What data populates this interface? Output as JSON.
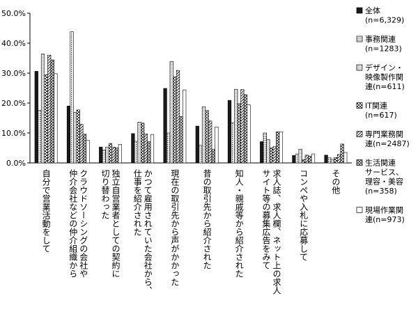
{
  "chart_data": {
    "type": "bar",
    "title": "",
    "xlabel": "",
    "ylabel": "",
    "ylim": [
      0,
      50
    ],
    "yticks": [
      "0.0%",
      "10.0%",
      "20.0%",
      "30.0%",
      "40.0%",
      "50.0%"
    ],
    "grid": false,
    "legend_position": "right",
    "categories": [
      "自分で営業活動をして",
      "クラウドソーシングの会社や仲介会社などの仲介組織から",
      "独立自営業者としての契約に切り替わった",
      "かつて雇用されていた会社から、仕事を紹介された",
      "現在の取引先から声がかかった",
      "昔の取引先から紹介された",
      "知人・親戚等から紹介された",
      "求人誌、求人欄、ネット上の求人サイト等の募集広告をみて",
      "コンペや入札に応募して",
      "その他"
    ],
    "series": [
      {
        "name": "全体(n=6,329)",
        "values": [
          30.6,
          19.0,
          5.3,
          9.8,
          24.9,
          12.3,
          20.9,
          7.1,
          2.5,
          2.6
        ]
      },
      {
        "name": "事務関連(n=1283)",
        "values": [
          17.5,
          43.8,
          4.3,
          7.2,
          10.0,
          5.9,
          13.4,
          10.0,
          3.0,
          1.8
        ]
      },
      {
        "name": "デザイン・映像製作関連(n=611)",
        "values": [
          36.4,
          16.9,
          5.3,
          13.6,
          33.9,
          18.8,
          24.6,
          7.8,
          4.6,
          1.2
        ]
      },
      {
        "name": "IT関連(n=617)",
        "values": [
          29.5,
          17.7,
          6.5,
          13.3,
          28.7,
          17.5,
          19.8,
          5.0,
          1.1,
          1.8
        ]
      },
      {
        "name": "専門業務関連(n=2487)",
        "values": [
          36.0,
          12.9,
          5.3,
          9.7,
          30.9,
          14.0,
          24.5,
          5.4,
          2.6,
          2.8
        ]
      },
      {
        "name": "生活関連サービス、理容・美容(n=358)",
        "values": [
          34.4,
          9.6,
          5.0,
          7.1,
          15.5,
          4.5,
          22.8,
          10.4,
          2.3,
          6.3
        ]
      },
      {
        "name": "現場作業関連(n=973)",
        "values": [
          29.8,
          7.5,
          6.2,
          9.5,
          24.4,
          12.0,
          19.4,
          10.4,
          3.0,
          3.5
        ]
      }
    ],
    "legend": [
      {
        "lines": [
          "全体",
          "(n=6,329)"
        ]
      },
      {
        "lines": [
          "事務関連",
          "(n=1283)"
        ]
      },
      {
        "lines": [
          "デザイン・",
          "映像製作関",
          "連(n=611)"
        ]
      },
      {
        "lines": [
          "IT関連",
          "(n=617)"
        ]
      },
      {
        "lines": [
          "専門業務関",
          "連(n=2487)"
        ]
      },
      {
        "lines": [
          "生活関連",
          "サービス、",
          "理容・美容",
          "(n=358)"
        ]
      },
      {
        "lines": [
          "現場作業関",
          "連(n=973)"
        ]
      }
    ],
    "category_label_columns": [
      [
        "自分で営業活動をして"
      ],
      [
        "クラウドソーシングの会社や",
        "仲介会社などの仲介組織から"
      ],
      [
        "独立自営業者としての契約に",
        "切り替わった"
      ],
      [
        "かつて雇用されていた会社から、",
        "仕事を紹介された"
      ],
      [
        "現在の取引先から声がかかった"
      ],
      [
        "昔の取引先から紹介された"
      ],
      [
        "知人・親戚等から紹介された"
      ],
      [
        "求人誌、求人欄、ネット上の求人",
        "サイト等の募集広告をみて"
      ],
      [
        "コンペや入札に応募して"
      ],
      [
        "その他"
      ]
    ]
  }
}
